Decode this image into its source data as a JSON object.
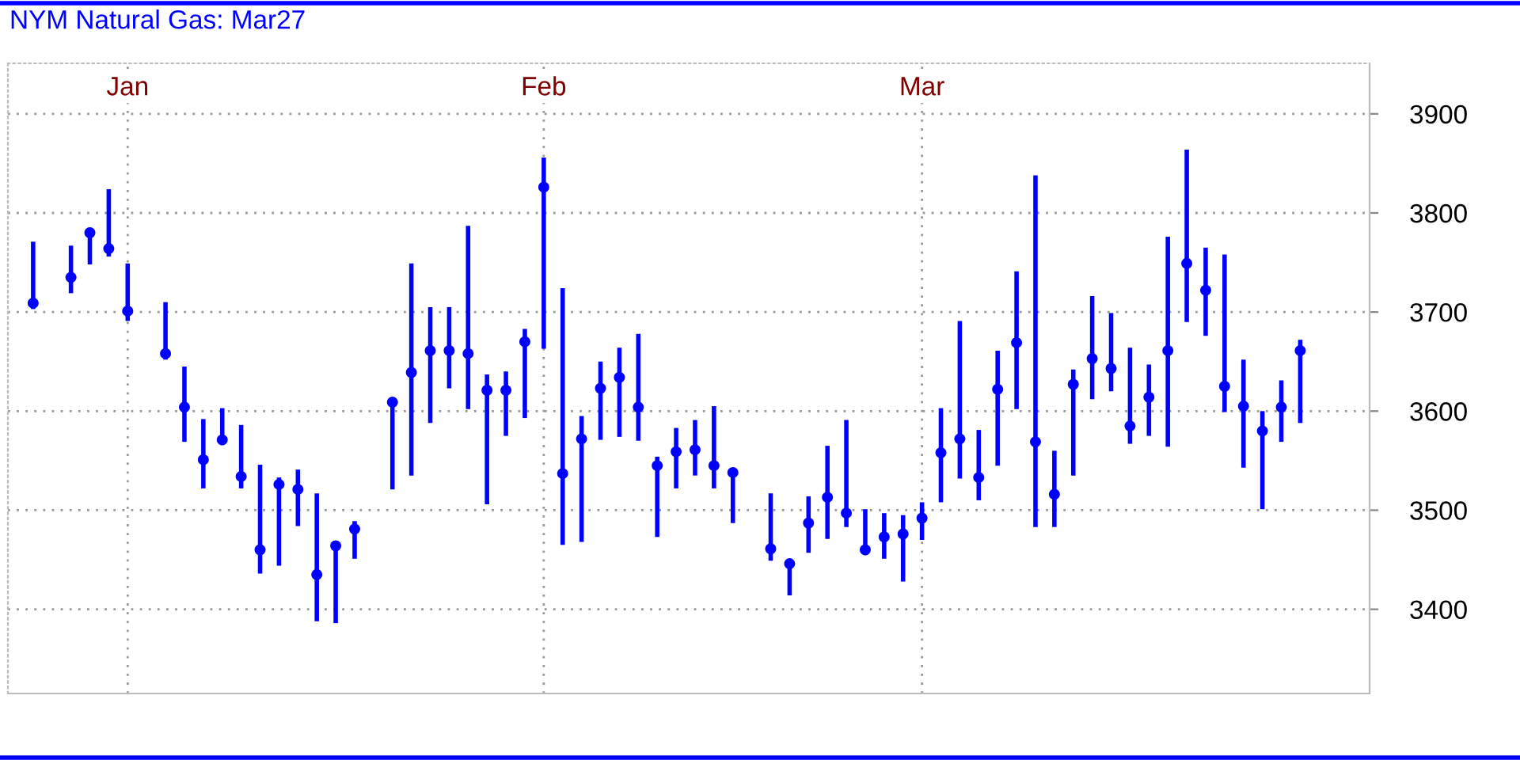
{
  "chart_data": {
    "type": "scatter",
    "title": "NYM Natural Gas: Mar27",
    "categories": [
      null,
      null,
      null,
      null,
      null,
      "Jan",
      null,
      null,
      null,
      null,
      null,
      null,
      null,
      null,
      null,
      null,
      null,
      null,
      null,
      null,
      null,
      null,
      null,
      null,
      null,
      null,
      null,
      "Feb",
      null,
      null,
      null,
      null,
      null,
      null,
      null,
      null,
      null,
      null,
      null,
      null,
      null,
      null,
      null,
      null,
      null,
      null,
      null,
      "Mar",
      null,
      null,
      null,
      null,
      null,
      null,
      null,
      null,
      null,
      null,
      null,
      null,
      null,
      null,
      null,
      null,
      null,
      null,
      null,
      null
    ],
    "series": [
      {
        "color": "#0000ff",
        "marker": "circle",
        "values": [
          3709,
          null,
          3735,
          3780,
          3764,
          3701,
          null,
          3658,
          3604,
          3551,
          3571,
          3534,
          3460,
          3526,
          3521,
          3435,
          3464,
          3481,
          null,
          3609,
          3639,
          3661,
          3661,
          3658,
          3621,
          3621,
          3670,
          3826,
          3537,
          3572,
          3623,
          3634,
          3604,
          3545,
          3559,
          3561,
          3545,
          3538,
          null,
          3461,
          3446,
          3487,
          3513,
          3497,
          3460,
          3473,
          3476,
          3492,
          3558,
          3572,
          3533,
          3622,
          3669,
          3569,
          3516,
          3627,
          3653,
          3643,
          3585,
          3614,
          3661,
          3749,
          3722,
          3625,
          3605,
          3580,
          3604,
          3661
        ],
        "errors": [
          [
            3703,
            3771
          ],
          null,
          [
            3719,
            3767
          ],
          [
            3748,
            3785
          ],
          [
            3756,
            3824
          ],
          [
            3691,
            3749
          ],
          null,
          [
            3652,
            3710
          ],
          [
            3569,
            3645
          ],
          [
            3522,
            3592
          ],
          [
            3568,
            3603
          ],
          [
            3522,
            3586
          ],
          [
            3436,
            3546
          ],
          [
            3444,
            3533
          ],
          [
            3484,
            3541
          ],
          [
            3388,
            3517
          ],
          [
            3386,
            3468
          ],
          [
            3451,
            3489
          ],
          null,
          [
            3521,
            3612
          ],
          [
            3535,
            3749
          ],
          [
            3588,
            3705
          ],
          [
            3623,
            3705
          ],
          [
            3602,
            3787
          ],
          [
            3506,
            3637
          ],
          [
            3575,
            3640
          ],
          [
            3593,
            3683
          ],
          [
            3663,
            3856
          ],
          [
            3465,
            3724
          ],
          [
            3468,
            3595
          ],
          [
            3571,
            3650
          ],
          [
            3574,
            3664
          ],
          [
            3570,
            3678
          ],
          [
            3473,
            3554
          ],
          [
            3522,
            3583
          ],
          [
            3535,
            3591
          ],
          [
            3522,
            3605
          ],
          [
            3487,
            3539
          ],
          null,
          [
            3449,
            3517
          ],
          [
            3414,
            3446
          ],
          [
            3457,
            3514
          ],
          [
            3471,
            3565
          ],
          [
            3483,
            3591
          ],
          [
            3457,
            3501
          ],
          [
            3451,
            3497
          ],
          [
            3428,
            3495
          ],
          [
            3470,
            3508
          ],
          [
            3508,
            3603
          ],
          [
            3532,
            3691
          ],
          [
            3510,
            3581
          ],
          [
            3545,
            3661
          ],
          [
            3602,
            3741
          ],
          [
            3483,
            3838
          ],
          [
            3483,
            3560
          ],
          [
            3535,
            3642
          ],
          [
            3612,
            3716
          ],
          [
            3620,
            3699
          ],
          [
            3567,
            3664
          ],
          [
            3575,
            3647
          ],
          [
            3564,
            3776
          ],
          [
            3690,
            3864
          ],
          [
            3676,
            3765
          ],
          [
            3599,
            3758
          ],
          [
            3543,
            3652
          ],
          [
            3501,
            3600
          ],
          [
            3569,
            3631
          ],
          [
            3588,
            3672
          ]
        ]
      }
    ],
    "ylim": [
      3315,
      3951
    ],
    "yticks": [
      3400,
      3500,
      3600,
      3700,
      3800,
      3900
    ],
    "grid": true
  }
}
